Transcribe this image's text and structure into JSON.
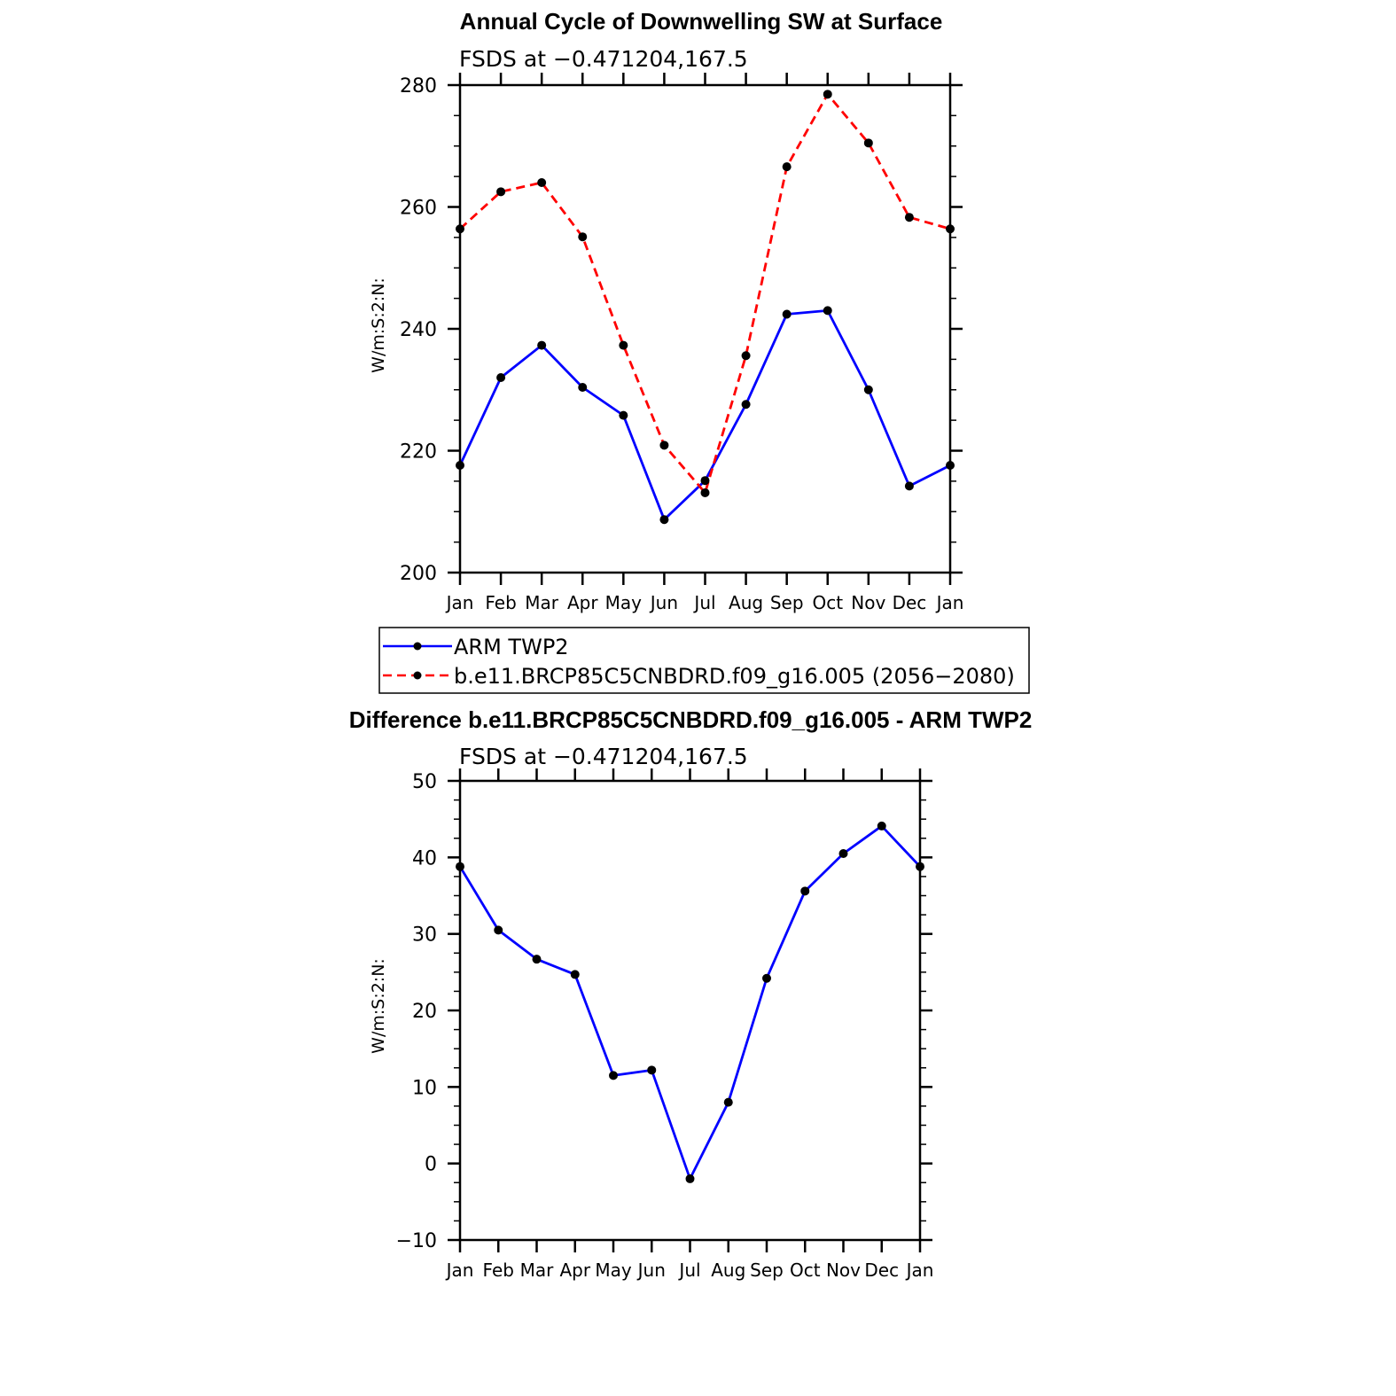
{
  "chart_data": [
    {
      "type": "line",
      "title": "Annual Cycle of Downwelling SW at Surface",
      "subtitle": "FSDS at −0.471204,167.5",
      "ylabel": "W/m:S:2:N:",
      "xlabel": "",
      "categories": [
        "Jan",
        "Feb",
        "Mar",
        "Apr",
        "May",
        "Jun",
        "Jul",
        "Aug",
        "Sep",
        "Oct",
        "Nov",
        "Dec",
        "Jan"
      ],
      "ylim": [
        200,
        280
      ],
      "yticks": [
        200,
        220,
        240,
        260,
        280
      ],
      "ytick_labels": [
        "200",
        "220",
        "240",
        "260",
        "280"
      ],
      "series": [
        {
          "name": "ARM  TWP2",
          "color": "#0000ff",
          "dash": "solid",
          "values": [
            217.6,
            232.0,
            237.3,
            230.4,
            225.8,
            208.7,
            215.1,
            227.6,
            242.4,
            243.0,
            230.0,
            214.2,
            217.6
          ]
        },
        {
          "name": "b.e11.BRCP85C5CNBDRD.f09_g16.005 (2056−2080)",
          "color": "#ff0000",
          "dash": "dashed",
          "values": [
            256.4,
            262.5,
            264.0,
            255.1,
            237.3,
            220.9,
            213.1,
            235.6,
            266.6,
            278.5,
            270.5,
            258.3,
            256.4
          ]
        }
      ],
      "legend": {
        "position": "below",
        "entries": [
          "ARM  TWP2",
          "b.e11.BRCP85C5CNBDRD.f09_g16.005 (2056−2080)"
        ]
      },
      "grid": false
    },
    {
      "type": "line",
      "title": "Difference b.e11.BRCP85C5CNBDRD.f09_g16.005 - ARM TWP2",
      "subtitle": "FSDS at −0.471204,167.5",
      "ylabel": "W/m:S:2:N:",
      "xlabel": "",
      "categories": [
        "Jan",
        "Feb",
        "Mar",
        "Apr",
        "May",
        "Jun",
        "Jul",
        "Aug",
        "Sep",
        "Oct",
        "Nov",
        "Dec",
        "Jan"
      ],
      "ylim": [
        -10,
        50
      ],
      "yticks": [
        -10,
        0,
        10,
        20,
        30,
        40,
        50
      ],
      "ytick_labels": [
        "−10",
        "0",
        "10",
        "20",
        "30",
        "40",
        "50"
      ],
      "series": [
        {
          "name": "Difference",
          "color": "#0000ff",
          "dash": "solid",
          "values": [
            38.8,
            30.5,
            26.7,
            24.7,
            11.5,
            12.2,
            -2.0,
            8.0,
            24.2,
            35.6,
            40.5,
            44.1,
            38.8
          ]
        }
      ],
      "grid": false
    }
  ]
}
